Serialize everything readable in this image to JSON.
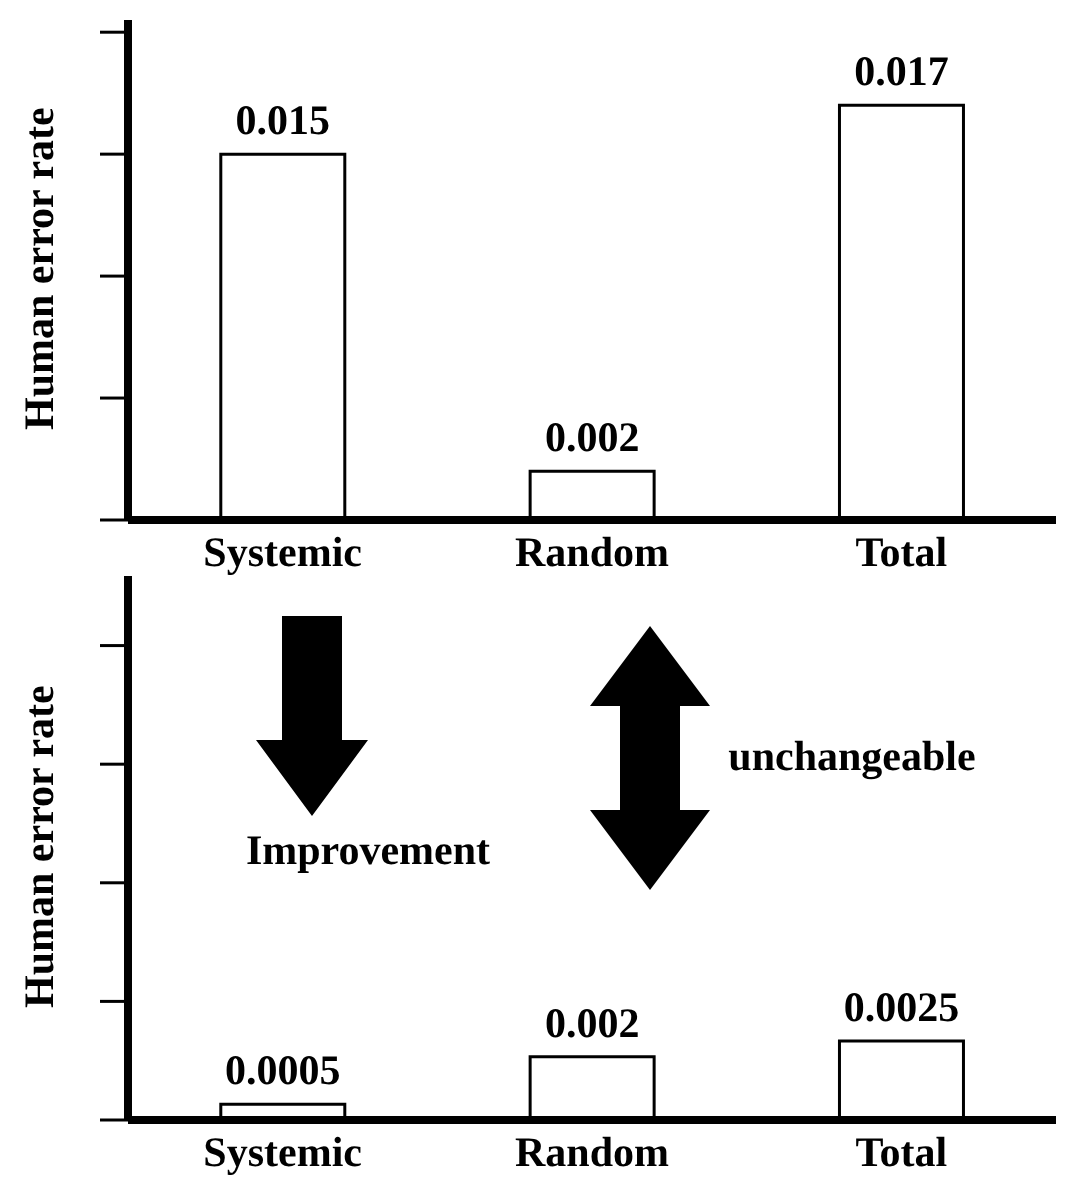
{
  "chart_data": [
    {
      "type": "bar",
      "ylabel": "Human error rate",
      "categories": [
        "Systemic",
        "Random",
        "Total"
      ],
      "values": [
        0.015,
        0.002,
        0.017
      ],
      "color": "#ffffff",
      "data_labels": true,
      "ylim": [
        0,
        0.0205
      ],
      "yticks": [
        {
          "value": 0,
          "label": null
        },
        {
          "value": 0.005,
          "label": null
        },
        {
          "value": 0.01,
          "label": null
        },
        {
          "value": 0.015,
          "label": null
        },
        {
          "value": 0.02,
          "label": null
        }
      ],
      "tick_labels": "x",
      "grid": false
    },
    {
      "type": "bar",
      "ylabel": "Human error rate",
      "categories": [
        "Systemic",
        "Random",
        "Total"
      ],
      "values": [
        0.0005,
        0.002,
        0.0025
      ],
      "color": "#ffffff",
      "data_labels": true,
      "ylim": [
        0,
        0.0172
      ],
      "yticks": [
        {
          "value": 0,
          "label": null
        },
        {
          "value": 0.00375,
          "label": null
        },
        {
          "value": 0.0075,
          "label": null
        },
        {
          "value": 0.01125,
          "label": null
        },
        {
          "value": 0.015,
          "label": null
        }
      ],
      "tick_labels": "x",
      "grid": false,
      "annotations": [
        "Improvement",
        "unchangeable"
      ]
    }
  ]
}
